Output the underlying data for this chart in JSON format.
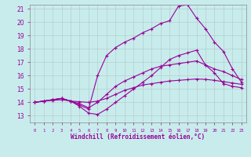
{
  "xlabel": "Windchill (Refroidissement éolien,°C)",
  "background_color": "#c8ecec",
  "line_color": "#990099",
  "grid_color": "#b0c8c8",
  "xmin": 0,
  "xmax": 23,
  "ymin": 13,
  "ymax": 21,
  "curve1_x": [
    0,
    1,
    2,
    3,
    4,
    5,
    6,
    7,
    8,
    9,
    10,
    11,
    12,
    13,
    14,
    15,
    16,
    17,
    18,
    19,
    20,
    21,
    22,
    23
  ],
  "curve1_y": [
    14.0,
    14.1,
    14.2,
    14.3,
    14.1,
    13.7,
    13.2,
    13.1,
    13.5,
    14.0,
    14.5,
    15.0,
    15.5,
    16.0,
    16.6,
    17.2,
    17.5,
    17.7,
    17.9,
    16.8,
    16.2,
    15.4,
    15.2,
    15.1
  ],
  "curve2_x": [
    0,
    1,
    2,
    3,
    4,
    5,
    6,
    7,
    8,
    9,
    10,
    11,
    12,
    13,
    14,
    15,
    16,
    17,
    18,
    19,
    20,
    21,
    22,
    23
  ],
  "curve2_y": [
    14.0,
    14.1,
    14.2,
    14.3,
    14.1,
    13.8,
    13.5,
    16.0,
    17.5,
    18.1,
    18.5,
    18.8,
    19.2,
    19.5,
    19.9,
    20.1,
    21.2,
    21.3,
    20.3,
    19.5,
    18.5,
    17.8,
    16.5,
    15.5
  ],
  "curve3_x": [
    0,
    1,
    2,
    3,
    4,
    5,
    6,
    7,
    8,
    9,
    10,
    11,
    12,
    13,
    14,
    15,
    16,
    17,
    18,
    19,
    20,
    21,
    22,
    23
  ],
  "curve3_y": [
    14.0,
    14.1,
    14.2,
    14.3,
    14.1,
    13.9,
    13.6,
    14.0,
    14.6,
    15.2,
    15.6,
    15.9,
    16.2,
    16.5,
    16.7,
    16.8,
    16.9,
    17.0,
    17.1,
    16.8,
    16.5,
    16.3,
    16.0,
    15.7
  ],
  "curve4_x": [
    0,
    1,
    2,
    3,
    4,
    5,
    6,
    7,
    8,
    9,
    10,
    11,
    12,
    13,
    14,
    15,
    16,
    17,
    18,
    19,
    20,
    21,
    22,
    23
  ],
  "curve4_y": [
    14.0,
    14.1,
    14.15,
    14.2,
    14.1,
    14.05,
    14.0,
    14.1,
    14.3,
    14.6,
    14.9,
    15.1,
    15.3,
    15.4,
    15.5,
    15.6,
    15.65,
    15.7,
    15.75,
    15.72,
    15.65,
    15.55,
    15.45,
    15.35
  ]
}
